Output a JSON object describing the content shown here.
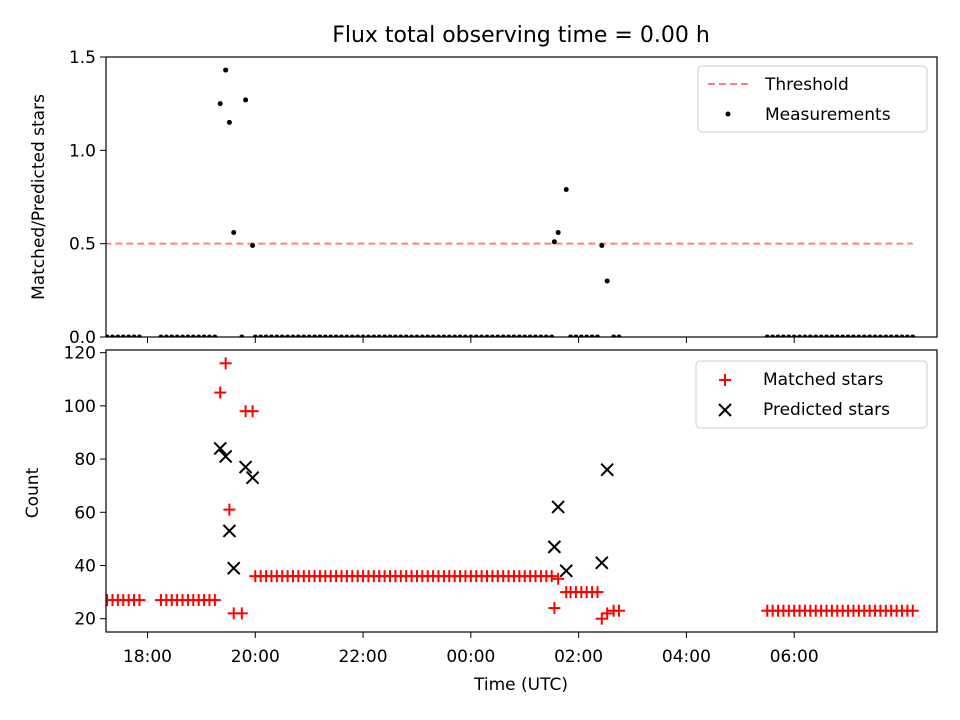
{
  "title": "Flux total observing time = 0.00 h",
  "chart_data": [
    {
      "type": "scatter",
      "ylabel": "Matched/Predicted stars",
      "xlabel": "",
      "x_unit": "hours since 18:00 UTC",
      "xlim": [
        -0.77,
        14.65
      ],
      "ylim": [
        0.0,
        1.5
      ],
      "yticks": [
        "0.0",
        "0.5",
        "1.0",
        "1.5"
      ],
      "legend": {
        "position": "top-right",
        "entries": [
          "Threshold",
          "Measurements"
        ]
      },
      "threshold": {
        "name": "Threshold",
        "value": 0.5,
        "x": [
          -0.8,
          14.2
        ],
        "color": "#ff7f7f"
      },
      "series": [
        {
          "name": "Measurements",
          "color": "#000000",
          "points": [
            [
              -0.85,
              0
            ],
            [
              -0.75,
              0
            ],
            [
              -0.65,
              0
            ],
            [
              -0.55,
              0
            ],
            [
              -0.45,
              0
            ],
            [
              -0.35,
              0
            ],
            [
              -0.25,
              0
            ],
            [
              -0.15,
              0
            ],
            [
              0.25,
              0
            ],
            [
              0.35,
              0
            ],
            [
              0.45,
              0
            ],
            [
              0.55,
              0
            ],
            [
              0.65,
              0
            ],
            [
              0.75,
              0
            ],
            [
              0.85,
              0
            ],
            [
              0.95,
              0
            ],
            [
              1.05,
              0
            ],
            [
              1.15,
              0
            ],
            [
              1.25,
              0
            ],
            [
              1.35,
              1.25
            ],
            [
              1.45,
              1.43
            ],
            [
              1.52,
              1.15
            ],
            [
              1.6,
              0.56
            ],
            [
              1.75,
              0
            ],
            [
              1.82,
              1.27
            ],
            [
              1.95,
              0.49
            ],
            [
              2.0,
              0
            ],
            [
              2.1,
              0
            ],
            [
              2.2,
              0
            ],
            [
              2.3,
              0
            ],
            [
              2.4,
              0
            ],
            [
              2.5,
              0
            ],
            [
              2.6,
              0
            ],
            [
              2.7,
              0
            ],
            [
              2.8,
              0
            ],
            [
              2.9,
              0
            ],
            [
              3.0,
              0
            ],
            [
              3.1,
              0
            ],
            [
              3.2,
              0
            ],
            [
              3.3,
              0
            ],
            [
              3.4,
              0
            ],
            [
              3.5,
              0
            ],
            [
              3.6,
              0
            ],
            [
              3.7,
              0
            ],
            [
              3.8,
              0
            ],
            [
              3.9,
              0
            ],
            [
              4.0,
              0
            ],
            [
              4.1,
              0
            ],
            [
              4.2,
              0
            ],
            [
              4.3,
              0
            ],
            [
              4.4,
              0
            ],
            [
              4.5,
              0
            ],
            [
              4.6,
              0
            ],
            [
              4.7,
              0
            ],
            [
              4.8,
              0
            ],
            [
              4.9,
              0
            ],
            [
              5.0,
              0
            ],
            [
              5.1,
              0
            ],
            [
              5.2,
              0
            ],
            [
              5.3,
              0
            ],
            [
              5.4,
              0
            ],
            [
              5.5,
              0
            ],
            [
              5.6,
              0
            ],
            [
              5.7,
              0
            ],
            [
              5.8,
              0
            ],
            [
              5.9,
              0
            ],
            [
              6.0,
              0
            ],
            [
              6.1,
              0
            ],
            [
              6.2,
              0
            ],
            [
              6.3,
              0
            ],
            [
              6.4,
              0
            ],
            [
              6.5,
              0
            ],
            [
              6.6,
              0
            ],
            [
              6.7,
              0
            ],
            [
              6.8,
              0
            ],
            [
              6.9,
              0
            ],
            [
              7.0,
              0
            ],
            [
              7.1,
              0
            ],
            [
              7.2,
              0
            ],
            [
              7.3,
              0
            ],
            [
              7.4,
              0
            ],
            [
              7.5,
              0
            ],
            [
              7.55,
              0.51
            ],
            [
              7.62,
              0.56
            ],
            [
              7.77,
              0.79
            ],
            [
              7.85,
              0
            ],
            [
              7.95,
              0
            ],
            [
              8.05,
              0
            ],
            [
              8.15,
              0
            ],
            [
              8.25,
              0
            ],
            [
              8.35,
              0
            ],
            [
              8.43,
              0.49
            ],
            [
              8.53,
              0.3
            ],
            [
              8.65,
              0
            ],
            [
              8.75,
              0
            ],
            [
              11.5,
              0
            ],
            [
              11.6,
              0
            ],
            [
              11.7,
              0
            ],
            [
              11.8,
              0
            ],
            [
              11.9,
              0
            ],
            [
              12.0,
              0
            ],
            [
              12.1,
              0
            ],
            [
              12.2,
              0
            ],
            [
              12.3,
              0
            ],
            [
              12.4,
              0
            ],
            [
              12.5,
              0
            ],
            [
              12.6,
              0
            ],
            [
              12.7,
              0
            ],
            [
              12.8,
              0
            ],
            [
              12.9,
              0
            ],
            [
              13.0,
              0
            ],
            [
              13.1,
              0
            ],
            [
              13.2,
              0
            ],
            [
              13.3,
              0
            ],
            [
              13.4,
              0
            ],
            [
              13.5,
              0
            ],
            [
              13.6,
              0
            ],
            [
              13.7,
              0
            ],
            [
              13.8,
              0
            ],
            [
              13.9,
              0
            ],
            [
              14.0,
              0
            ],
            [
              14.1,
              0
            ],
            [
              14.2,
              0
            ]
          ]
        }
      ]
    },
    {
      "type": "scatter",
      "ylabel": "Count",
      "xlabel": "Time (UTC)",
      "x_unit": "hours since 18:00 UTC",
      "xlim": [
        -0.77,
        14.65
      ],
      "ylim": [
        15,
        121
      ],
      "yticks": [
        20,
        40,
        60,
        80,
        100,
        120
      ],
      "xticks": [
        {
          "value": 0,
          "label": "18:00"
        },
        {
          "value": 2,
          "label": "20:00"
        },
        {
          "value": 4,
          "label": "22:00"
        },
        {
          "value": 6,
          "label": "00:00"
        },
        {
          "value": 8,
          "label": "02:00"
        },
        {
          "value": 10,
          "label": "04:00"
        },
        {
          "value": 12,
          "label": "06:00"
        }
      ],
      "legend": {
        "position": "top-right",
        "entries": [
          "Matched stars",
          "Predicted stars"
        ]
      },
      "series": [
        {
          "name": "Matched stars",
          "marker": "plus",
          "color": "#ff0000",
          "points": [
            [
              -0.85,
              27
            ],
            [
              -0.75,
              27
            ],
            [
              -0.65,
              27
            ],
            [
              -0.55,
              27
            ],
            [
              -0.45,
              27
            ],
            [
              -0.35,
              27
            ],
            [
              -0.25,
              27
            ],
            [
              -0.15,
              27
            ],
            [
              0.25,
              27
            ],
            [
              0.35,
              27
            ],
            [
              0.45,
              27
            ],
            [
              0.55,
              27
            ],
            [
              0.65,
              27
            ],
            [
              0.75,
              27
            ],
            [
              0.85,
              27
            ],
            [
              0.95,
              27
            ],
            [
              1.05,
              27
            ],
            [
              1.15,
              27
            ],
            [
              1.25,
              27
            ],
            [
              1.35,
              105
            ],
            [
              1.45,
              116
            ],
            [
              1.52,
              61
            ],
            [
              1.6,
              22
            ],
            [
              1.75,
              22
            ],
            [
              1.82,
              98
            ],
            [
              1.95,
              98
            ],
            [
              2.0,
              36
            ],
            [
              2.1,
              36
            ],
            [
              2.2,
              36
            ],
            [
              2.3,
              36
            ],
            [
              2.4,
              36
            ],
            [
              2.5,
              36
            ],
            [
              2.6,
              36
            ],
            [
              2.7,
              36
            ],
            [
              2.8,
              36
            ],
            [
              2.9,
              36
            ],
            [
              3.0,
              36
            ],
            [
              3.1,
              36
            ],
            [
              3.2,
              36
            ],
            [
              3.3,
              36
            ],
            [
              3.4,
              36
            ],
            [
              3.5,
              36
            ],
            [
              3.6,
              36
            ],
            [
              3.7,
              36
            ],
            [
              3.8,
              36
            ],
            [
              3.9,
              36
            ],
            [
              4.0,
              36
            ],
            [
              4.1,
              36
            ],
            [
              4.2,
              36
            ],
            [
              4.3,
              36
            ],
            [
              4.4,
              36
            ],
            [
              4.5,
              36
            ],
            [
              4.6,
              36
            ],
            [
              4.7,
              36
            ],
            [
              4.8,
              36
            ],
            [
              4.9,
              36
            ],
            [
              5.0,
              36
            ],
            [
              5.1,
              36
            ],
            [
              5.2,
              36
            ],
            [
              5.3,
              36
            ],
            [
              5.4,
              36
            ],
            [
              5.5,
              36
            ],
            [
              5.6,
              36
            ],
            [
              5.7,
              36
            ],
            [
              5.8,
              36
            ],
            [
              5.9,
              36
            ],
            [
              6.0,
              36
            ],
            [
              6.1,
              36
            ],
            [
              6.2,
              36
            ],
            [
              6.3,
              36
            ],
            [
              6.4,
              36
            ],
            [
              6.5,
              36
            ],
            [
              6.6,
              36
            ],
            [
              6.7,
              36
            ],
            [
              6.8,
              36
            ],
            [
              6.9,
              36
            ],
            [
              7.0,
              36
            ],
            [
              7.1,
              36
            ],
            [
              7.2,
              36
            ],
            [
              7.3,
              36
            ],
            [
              7.4,
              36
            ],
            [
              7.5,
              36
            ],
            [
              7.55,
              24
            ],
            [
              7.62,
              35
            ],
            [
              7.77,
              30
            ],
            [
              7.85,
              30
            ],
            [
              7.95,
              30
            ],
            [
              8.05,
              30
            ],
            [
              8.15,
              30
            ],
            [
              8.25,
              30
            ],
            [
              8.35,
              30
            ],
            [
              8.43,
              20
            ],
            [
              8.53,
              22
            ],
            [
              8.65,
              23
            ],
            [
              8.75,
              23
            ],
            [
              11.5,
              23
            ],
            [
              11.6,
              23
            ],
            [
              11.7,
              23
            ],
            [
              11.8,
              23
            ],
            [
              11.9,
              23
            ],
            [
              12.0,
              23
            ],
            [
              12.1,
              23
            ],
            [
              12.2,
              23
            ],
            [
              12.3,
              23
            ],
            [
              12.4,
              23
            ],
            [
              12.5,
              23
            ],
            [
              12.6,
              23
            ],
            [
              12.7,
              23
            ],
            [
              12.8,
              23
            ],
            [
              12.9,
              23
            ],
            [
              13.0,
              23
            ],
            [
              13.1,
              23
            ],
            [
              13.2,
              23
            ],
            [
              13.3,
              23
            ],
            [
              13.4,
              23
            ],
            [
              13.5,
              23
            ],
            [
              13.6,
              23
            ],
            [
              13.7,
              23
            ],
            [
              13.8,
              23
            ],
            [
              13.9,
              23
            ],
            [
              14.0,
              23
            ],
            [
              14.1,
              23
            ],
            [
              14.2,
              23
            ]
          ]
        },
        {
          "name": "Predicted stars",
          "marker": "x",
          "color": "#000000",
          "points": [
            [
              1.35,
              84
            ],
            [
              1.45,
              81
            ],
            [
              1.52,
              53
            ],
            [
              1.6,
              39
            ],
            [
              1.82,
              77
            ],
            [
              1.95,
              73
            ],
            [
              7.55,
              47
            ],
            [
              7.62,
              62
            ],
            [
              7.77,
              38
            ],
            [
              8.43,
              41
            ],
            [
              8.53,
              76
            ]
          ]
        }
      ]
    }
  ]
}
